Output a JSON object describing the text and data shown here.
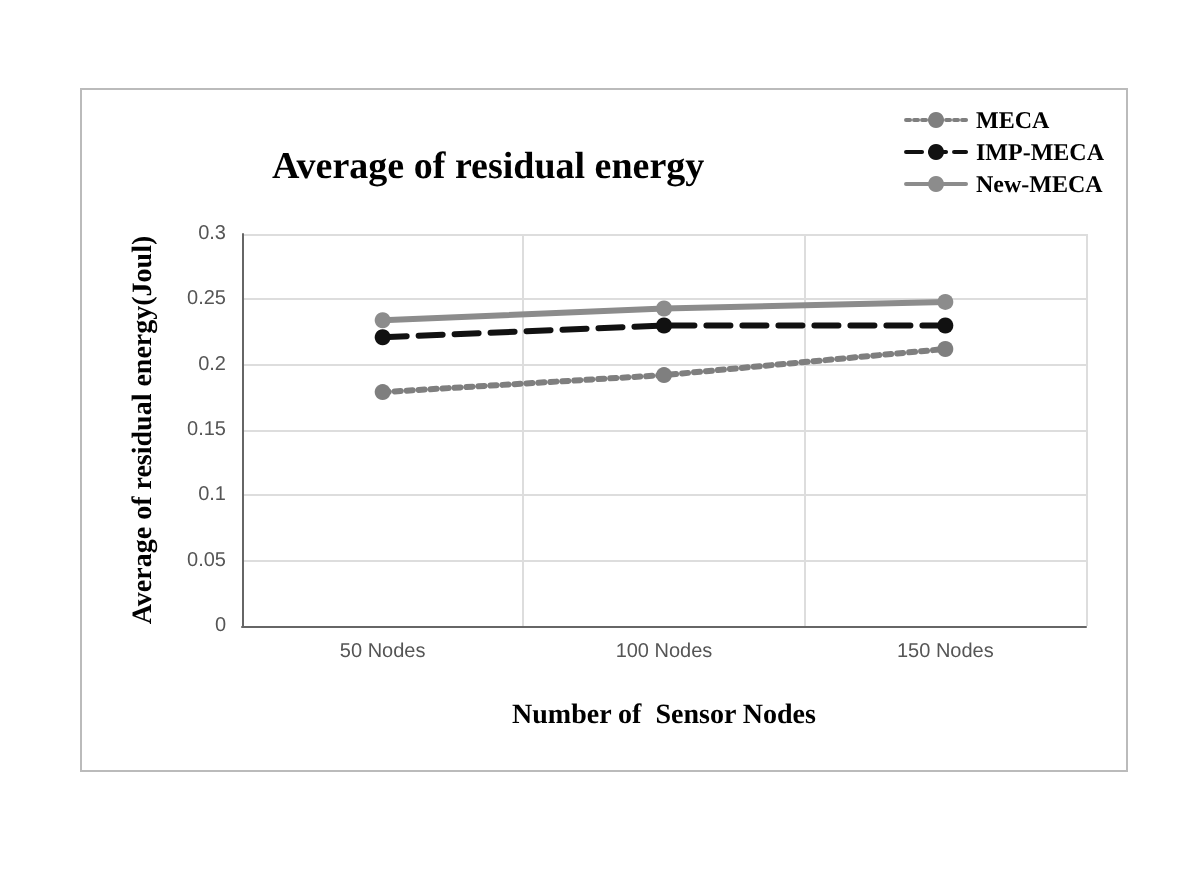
{
  "chart_data": {
    "type": "line",
    "title": "Average of residual energy",
    "xlabel": "Number of  Sensor Nodes",
    "ylabel": "Average of residual energy(Joul)",
    "categories": [
      "50 Nodes",
      "100 Nodes",
      "150 Nodes"
    ],
    "series": [
      {
        "name": "MECA",
        "color": "#7f7f7f",
        "line_style": "dotted",
        "values": [
          0.179,
          0.192,
          0.212
        ]
      },
      {
        "name": "IMP-MECA",
        "color": "#111111",
        "line_style": "dashed",
        "values": [
          0.221,
          0.23,
          0.23
        ]
      },
      {
        "name": "New-MECA",
        "color": "#8c8c8c",
        "line_style": "solid",
        "values": [
          0.234,
          0.243,
          0.248
        ]
      }
    ],
    "ylim": [
      0,
      0.3
    ],
    "yticks": [
      0,
      0.05,
      0.1,
      0.15,
      0.2,
      0.25,
      0.3
    ],
    "grid": true,
    "legend": "top right",
    "marker": "circle"
  }
}
